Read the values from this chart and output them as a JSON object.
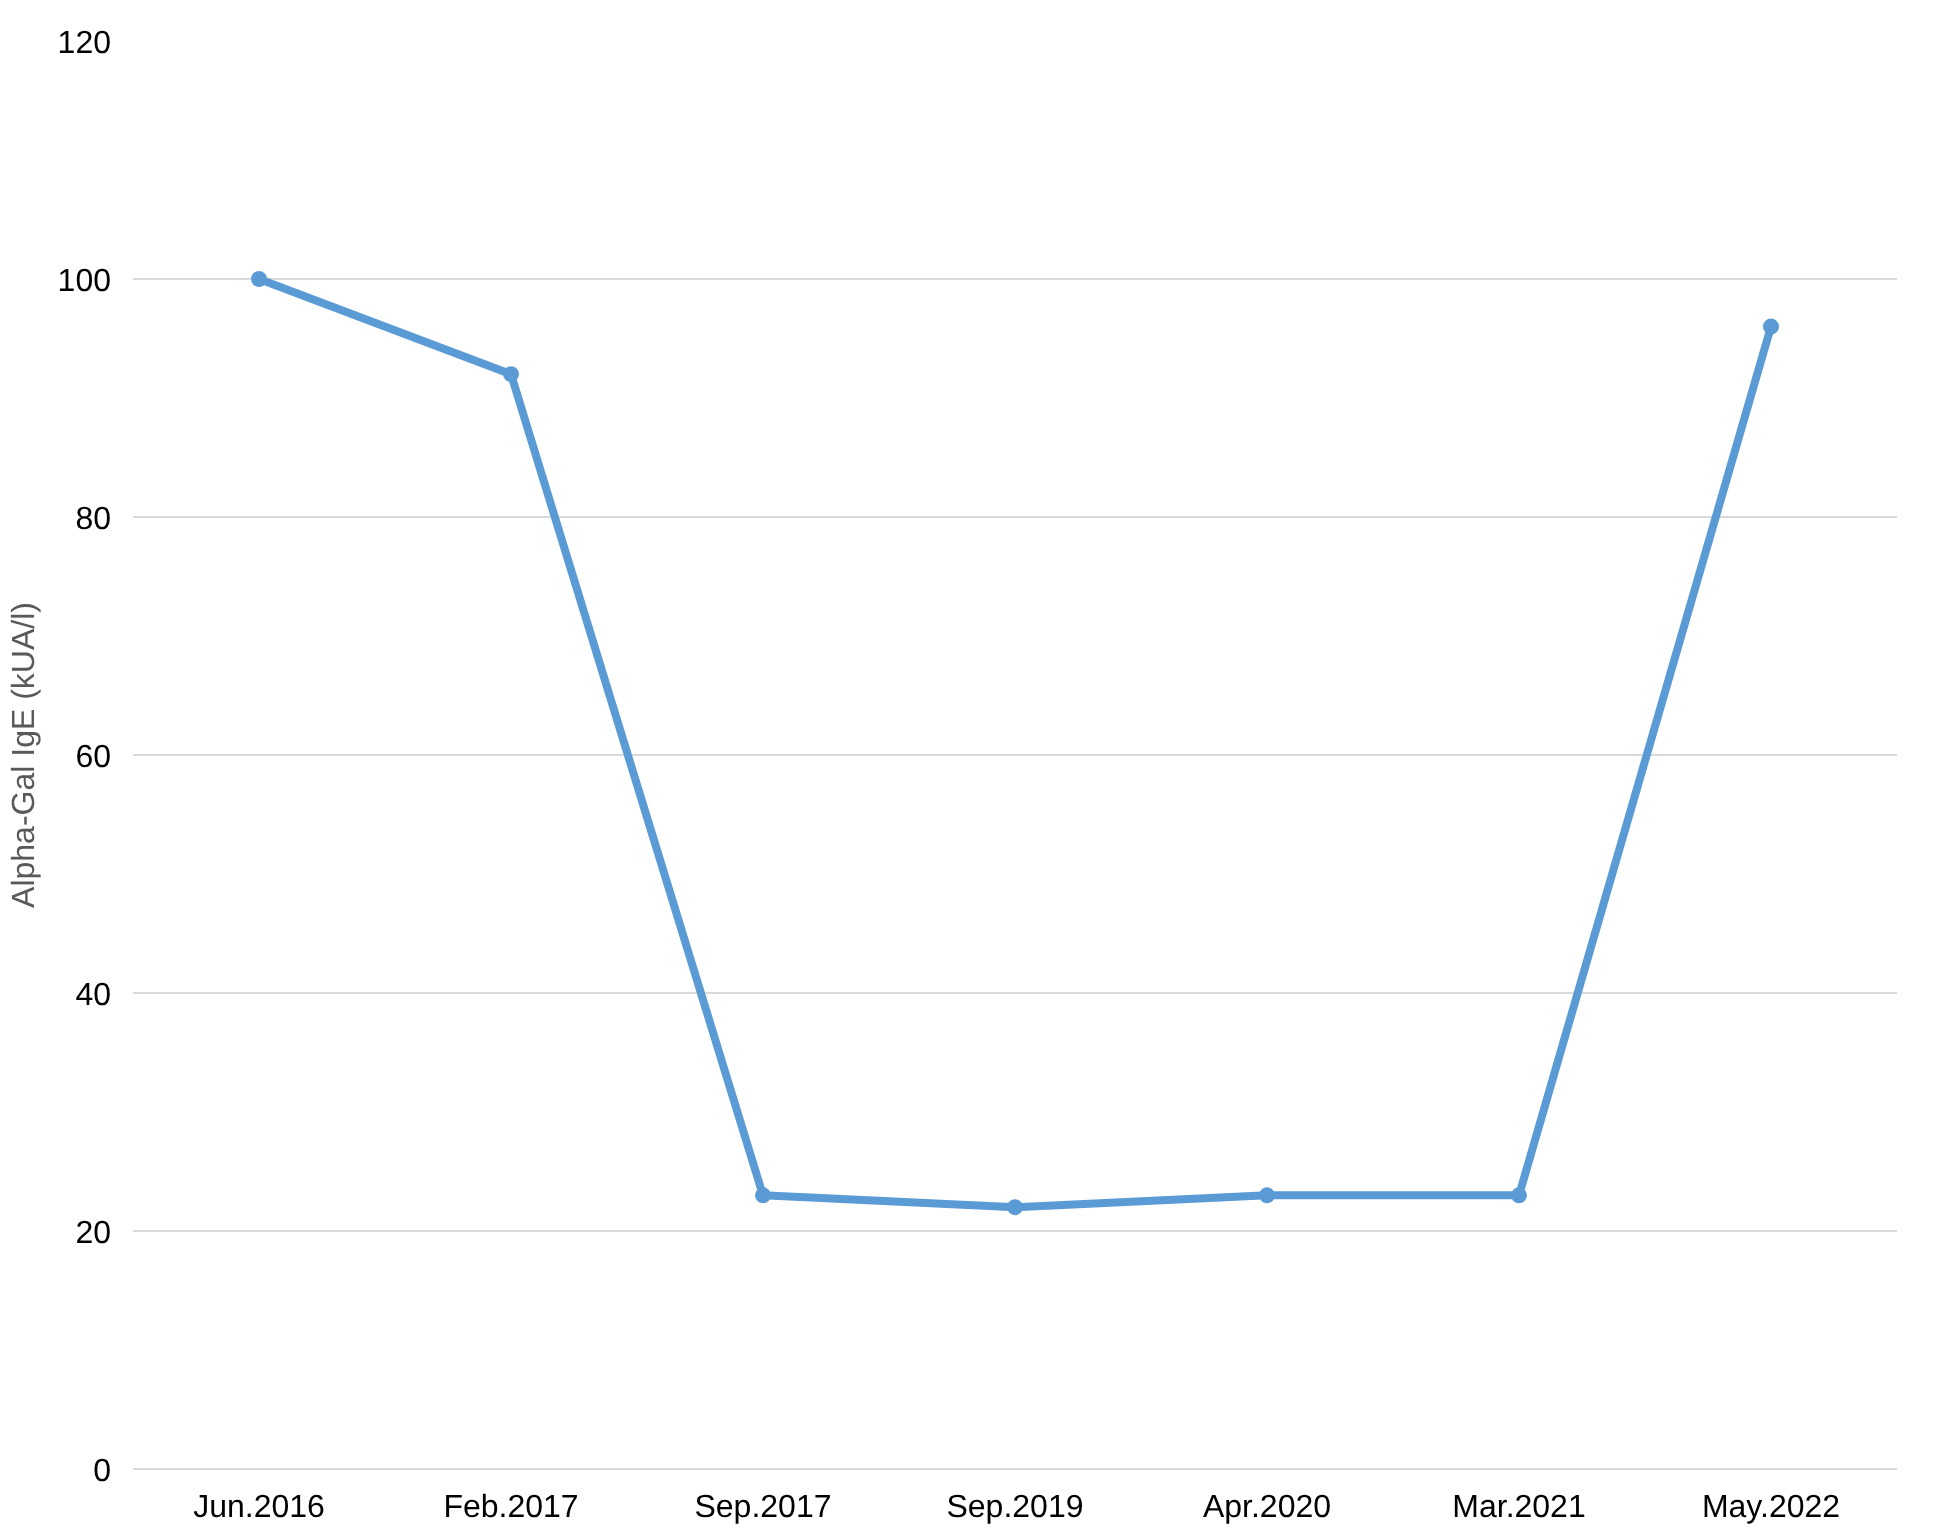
{
  "chart_data": {
    "type": "line",
    "ylabel": "Alpha-Gal IgE (kUA/l)",
    "categories": [
      "Jun.2016",
      "Feb.2017",
      "Sep.2017",
      "Sep.2019",
      "Apr.2020",
      "Mar.2021",
      "May.2022"
    ],
    "series": [
      {
        "color": "#5b9bd5",
        "values": [
          100,
          92,
          23,
          22,
          23,
          23,
          96
        ]
      }
    ],
    "ylim": [
      0,
      120
    ],
    "yticks": [
      0,
      20,
      40,
      60,
      80,
      100,
      120
    ],
    "grid": "y",
    "marker": "circle",
    "line_style": "solid"
  }
}
